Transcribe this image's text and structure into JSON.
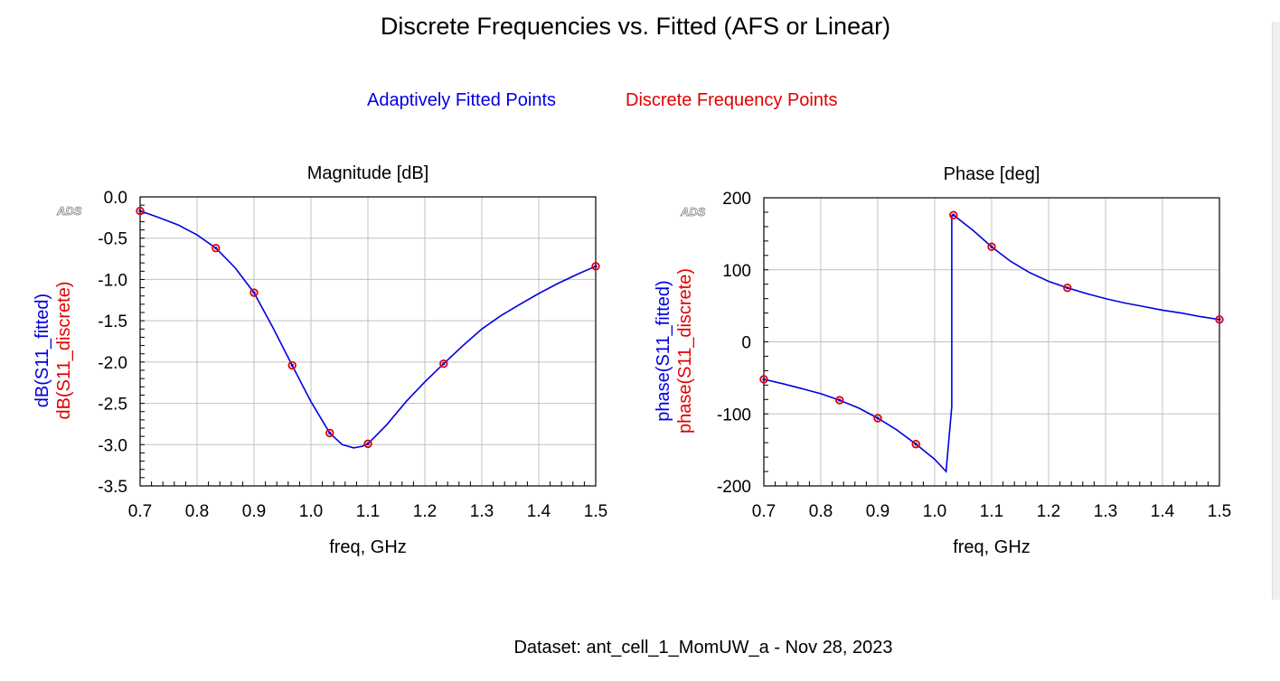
{
  "title": "Discrete Frequencies vs. Fitted (AFS or Linear)",
  "legend": {
    "fitted": "Adaptively Fitted Points",
    "discrete": "Discrete Frequency Points"
  },
  "footer": "Dataset: ant_cell_1_MomUW_a - Nov 28, 2023",
  "colors": {
    "fitted": "#0000e0",
    "discrete": "#e00000",
    "grid": "#c0c0c0"
  },
  "chart_data": [
    {
      "type": "line",
      "title": "Magnitude [dB]",
      "xlabel": "freq, GHz",
      "ylabel_fitted": "dB(S11_fitted)",
      "ylabel_discrete": "dB(S11_discrete)",
      "watermark": "ADS",
      "xlim": [
        0.7,
        1.5
      ],
      "ylim": [
        -3.5,
        0.0
      ],
      "xticks": [
        "0.7",
        "0.8",
        "0.9",
        "1.0",
        "1.1",
        "1.2",
        "1.3",
        "1.4",
        "1.5"
      ],
      "yticks": [
        "0.0",
        "-0.5",
        "-1.0",
        "-1.5",
        "-2.0",
        "-2.5",
        "-3.0",
        "-3.5"
      ],
      "grid": true,
      "series": [
        {
          "name": "Adaptively Fitted Points",
          "x": [
            0.7,
            0.733,
            0.767,
            0.8,
            0.833,
            0.867,
            0.9,
            0.933,
            0.967,
            1.0,
            1.033,
            1.055,
            1.075,
            1.09,
            1.1,
            1.133,
            1.167,
            1.2,
            1.233,
            1.267,
            1.3,
            1.333,
            1.367,
            1.4,
            1.433,
            1.467,
            1.5
          ],
          "y": [
            -0.17,
            -0.25,
            -0.34,
            -0.46,
            -0.62,
            -0.86,
            -1.16,
            -1.58,
            -2.04,
            -2.48,
            -2.86,
            -3.0,
            -3.04,
            -3.02,
            -2.99,
            -2.76,
            -2.48,
            -2.24,
            -2.02,
            -1.8,
            -1.6,
            -1.44,
            -1.3,
            -1.17,
            -1.05,
            -0.94,
            -0.84
          ]
        },
        {
          "name": "Discrete Frequency Points",
          "x": [
            0.7,
            0.833,
            0.9,
            0.967,
            1.033,
            1.1,
            1.233,
            1.5
          ],
          "y": [
            -0.17,
            -0.62,
            -1.16,
            -2.04,
            -2.86,
            -2.99,
            -2.02,
            -0.84
          ]
        }
      ]
    },
    {
      "type": "line",
      "title": "Phase [deg]",
      "xlabel": "freq, GHz",
      "ylabel_fitted": "phase(S11_fitted)",
      "ylabel_discrete": "phase(S11_discrete)",
      "watermark": "ADS",
      "xlim": [
        0.7,
        1.5
      ],
      "ylim": [
        -200,
        200
      ],
      "xticks": [
        "0.7",
        "0.8",
        "0.9",
        "1.0",
        "1.1",
        "1.2",
        "1.3",
        "1.4",
        "1.5"
      ],
      "yticks": [
        "200",
        "100",
        "0",
        "-100",
        "-200"
      ],
      "grid": true,
      "series": [
        {
          "name": "Adaptively Fitted Points",
          "x": [
            0.7,
            0.733,
            0.767,
            0.8,
            0.833,
            0.867,
            0.9,
            0.933,
            0.967,
            1.0,
            1.02,
            1.03,
            1.03,
            1.031,
            1.033,
            1.067,
            1.1,
            1.133,
            1.167,
            1.2,
            1.233,
            1.267,
            1.3,
            1.333,
            1.367,
            1.4,
            1.433,
            1.467,
            1.5
          ],
          "y": [
            -52,
            -58,
            -65,
            -72,
            -81,
            -92,
            -106,
            -122,
            -142,
            -163,
            -180,
            -90,
            175,
            176,
            176,
            155,
            132,
            112,
            96,
            84,
            75,
            67,
            60,
            54,
            49,
            44,
            40,
            35,
            31
          ]
        },
        {
          "name": "Discrete Frequency Points",
          "x": [
            0.7,
            0.833,
            0.9,
            0.967,
            1.033,
            1.1,
            1.233,
            1.5
          ],
          "y": [
            -52,
            -81,
            -106,
            -142,
            176,
            132,
            75,
            31
          ]
        }
      ]
    }
  ]
}
